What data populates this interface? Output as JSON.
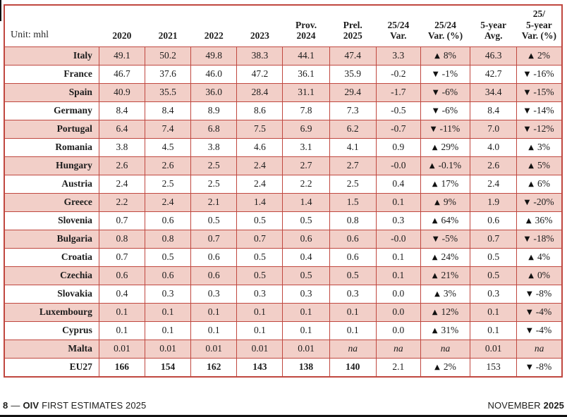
{
  "table": {
    "unit_label": "Unit: mhl",
    "columns": [
      "2020",
      "2021",
      "2022",
      "2023",
      "Prov.\n2024",
      "Prel.\n2025",
      "25/24\nVar.",
      "25/24\nVar. (%)",
      "5-year\nAvg.",
      "25/\n5-year\nVar. (%)"
    ],
    "rows": [
      {
        "country": "Italy",
        "values": [
          "49.1",
          "50.2",
          "49.8",
          "38.3",
          "44.1",
          "47.4"
        ],
        "var": "3.3",
        "var_pct": {
          "arrow": "up",
          "value": "8%"
        },
        "avg": "46.3",
        "avg_pct": {
          "arrow": "up",
          "value": "2%"
        },
        "emphasis": false
      },
      {
        "country": "France",
        "values": [
          "46.7",
          "37.6",
          "46.0",
          "47.2",
          "36.1",
          "35.9"
        ],
        "var": "-0.2",
        "var_pct": {
          "arrow": "down",
          "value": "-1%"
        },
        "avg": "42.7",
        "avg_pct": {
          "arrow": "down",
          "value": "-16%"
        },
        "emphasis": false
      },
      {
        "country": "Spain",
        "values": [
          "40.9",
          "35.5",
          "36.0",
          "28.4",
          "31.1",
          "29.4"
        ],
        "var": "-1.7",
        "var_pct": {
          "arrow": "down",
          "value": "-6%"
        },
        "avg": "34.4",
        "avg_pct": {
          "arrow": "down",
          "value": "-15%"
        },
        "emphasis": false
      },
      {
        "country": "Germany",
        "values": [
          "8.4",
          "8.4",
          "8.9",
          "8.6",
          "7.8",
          "7.3"
        ],
        "var": "-0.5",
        "var_pct": {
          "arrow": "down",
          "value": "-6%"
        },
        "avg": "8.4",
        "avg_pct": {
          "arrow": "down",
          "value": "-14%"
        },
        "emphasis": false
      },
      {
        "country": "Portugal",
        "values": [
          "6.4",
          "7.4",
          "6.8",
          "7.5",
          "6.9",
          "6.2"
        ],
        "var": "-0.7",
        "var_pct": {
          "arrow": "down",
          "value": "-11%"
        },
        "avg": "7.0",
        "avg_pct": {
          "arrow": "down",
          "value": "-12%"
        },
        "emphasis": false
      },
      {
        "country": "Romania",
        "values": [
          "3.8",
          "4.5",
          "3.8",
          "4.6",
          "3.1",
          "4.1"
        ],
        "var": "0.9",
        "var_pct": {
          "arrow": "up",
          "value": "29%"
        },
        "avg": "4.0",
        "avg_pct": {
          "arrow": "up",
          "value": "3%"
        },
        "emphasis": false
      },
      {
        "country": "Hungary",
        "values": [
          "2.6",
          "2.6",
          "2.5",
          "2.4",
          "2.7",
          "2.7"
        ],
        "var": "-0.0",
        "var_pct": {
          "arrow": "up",
          "value": "-0.1%"
        },
        "avg": "2.6",
        "avg_pct": {
          "arrow": "up",
          "value": "5%"
        },
        "emphasis": false
      },
      {
        "country": "Austria",
        "values": [
          "2.4",
          "2.5",
          "2.5",
          "2.4",
          "2.2",
          "2.5"
        ],
        "var": "0.4",
        "var_pct": {
          "arrow": "up",
          "value": "17%"
        },
        "avg": "2.4",
        "avg_pct": {
          "arrow": "up",
          "value": "6%"
        },
        "emphasis": false
      },
      {
        "country": "Greece",
        "values": [
          "2.2",
          "2.4",
          "2.1",
          "1.4",
          "1.4",
          "1.5"
        ],
        "var": "0.1",
        "var_pct": {
          "arrow": "up",
          "value": "9%"
        },
        "avg": "1.9",
        "avg_pct": {
          "arrow": "down",
          "value": "-20%"
        },
        "emphasis": false
      },
      {
        "country": "Slovenia",
        "values": [
          "0.7",
          "0.6",
          "0.5",
          "0.5",
          "0.5",
          "0.8"
        ],
        "var": "0.3",
        "var_pct": {
          "arrow": "up",
          "value": "64%"
        },
        "avg": "0.6",
        "avg_pct": {
          "arrow": "up",
          "value": "36%"
        },
        "emphasis": false
      },
      {
        "country": "Bulgaria",
        "values": [
          "0.8",
          "0.8",
          "0.7",
          "0.7",
          "0.6",
          "0.6"
        ],
        "var": "-0.0",
        "var_pct": {
          "arrow": "down",
          "value": "-5%"
        },
        "avg": "0.7",
        "avg_pct": {
          "arrow": "down",
          "value": "-18%"
        },
        "emphasis": false
      },
      {
        "country": "Croatia",
        "values": [
          "0.7",
          "0.5",
          "0.6",
          "0.5",
          "0.4",
          "0.6"
        ],
        "var": "0.1",
        "var_pct": {
          "arrow": "up",
          "value": "24%"
        },
        "avg": "0.5",
        "avg_pct": {
          "arrow": "up",
          "value": "4%"
        },
        "emphasis": false
      },
      {
        "country": "Czechia",
        "values": [
          "0.6",
          "0.6",
          "0.6",
          "0.5",
          "0.5",
          "0.5"
        ],
        "var": "0.1",
        "var_pct": {
          "arrow": "up",
          "value": "21%"
        },
        "avg": "0.5",
        "avg_pct": {
          "arrow": "up",
          "value": "0%"
        },
        "emphasis": false
      },
      {
        "country": "Slovakia",
        "values": [
          "0.4",
          "0.3",
          "0.3",
          "0.3",
          "0.3",
          "0.3"
        ],
        "var": "0.0",
        "var_pct": {
          "arrow": "up",
          "value": "3%"
        },
        "avg": "0.3",
        "avg_pct": {
          "arrow": "down",
          "value": "-8%"
        },
        "emphasis": false
      },
      {
        "country": "Luxembourg",
        "values": [
          "0.1",
          "0.1",
          "0.1",
          "0.1",
          "0.1",
          "0.1"
        ],
        "var": "0.0",
        "var_pct": {
          "arrow": "up",
          "value": "12%"
        },
        "avg": "0.1",
        "avg_pct": {
          "arrow": "down",
          "value": "-4%"
        },
        "emphasis": false
      },
      {
        "country": "Cyprus",
        "values": [
          "0.1",
          "0.1",
          "0.1",
          "0.1",
          "0.1",
          "0.1"
        ],
        "var": "0.0",
        "var_pct": {
          "arrow": "up",
          "value": "31%"
        },
        "avg": "0.1",
        "avg_pct": {
          "arrow": "down",
          "value": "-4%"
        },
        "emphasis": false
      },
      {
        "country": "Malta",
        "values": [
          "0.01",
          "0.01",
          "0.01",
          "0.01",
          "0.01",
          "na"
        ],
        "var": "na",
        "var_pct": "na",
        "avg": "0.01",
        "avg_pct": "na",
        "emphasis": false
      },
      {
        "country": "EU27",
        "values": [
          "166",
          "154",
          "162",
          "143",
          "138",
          "140"
        ],
        "var": "2.1",
        "var_pct": {
          "arrow": "up",
          "value": "2%"
        },
        "avg": "153",
        "avg_pct": {
          "arrow": "down",
          "value": "-8%"
        },
        "emphasis": true
      }
    ]
  },
  "icons": {
    "up": "▲",
    "down": "▼"
  },
  "colors": {
    "row_pink": "#f2cfc8",
    "border_red": "#c0473f"
  },
  "footer": {
    "left": {
      "page_number": "8",
      "separator": "—",
      "brand": "OIV",
      "title": "FIRST ESTIMATES 2025"
    },
    "right": {
      "month": "NOVEMBER",
      "year": "2025"
    }
  }
}
